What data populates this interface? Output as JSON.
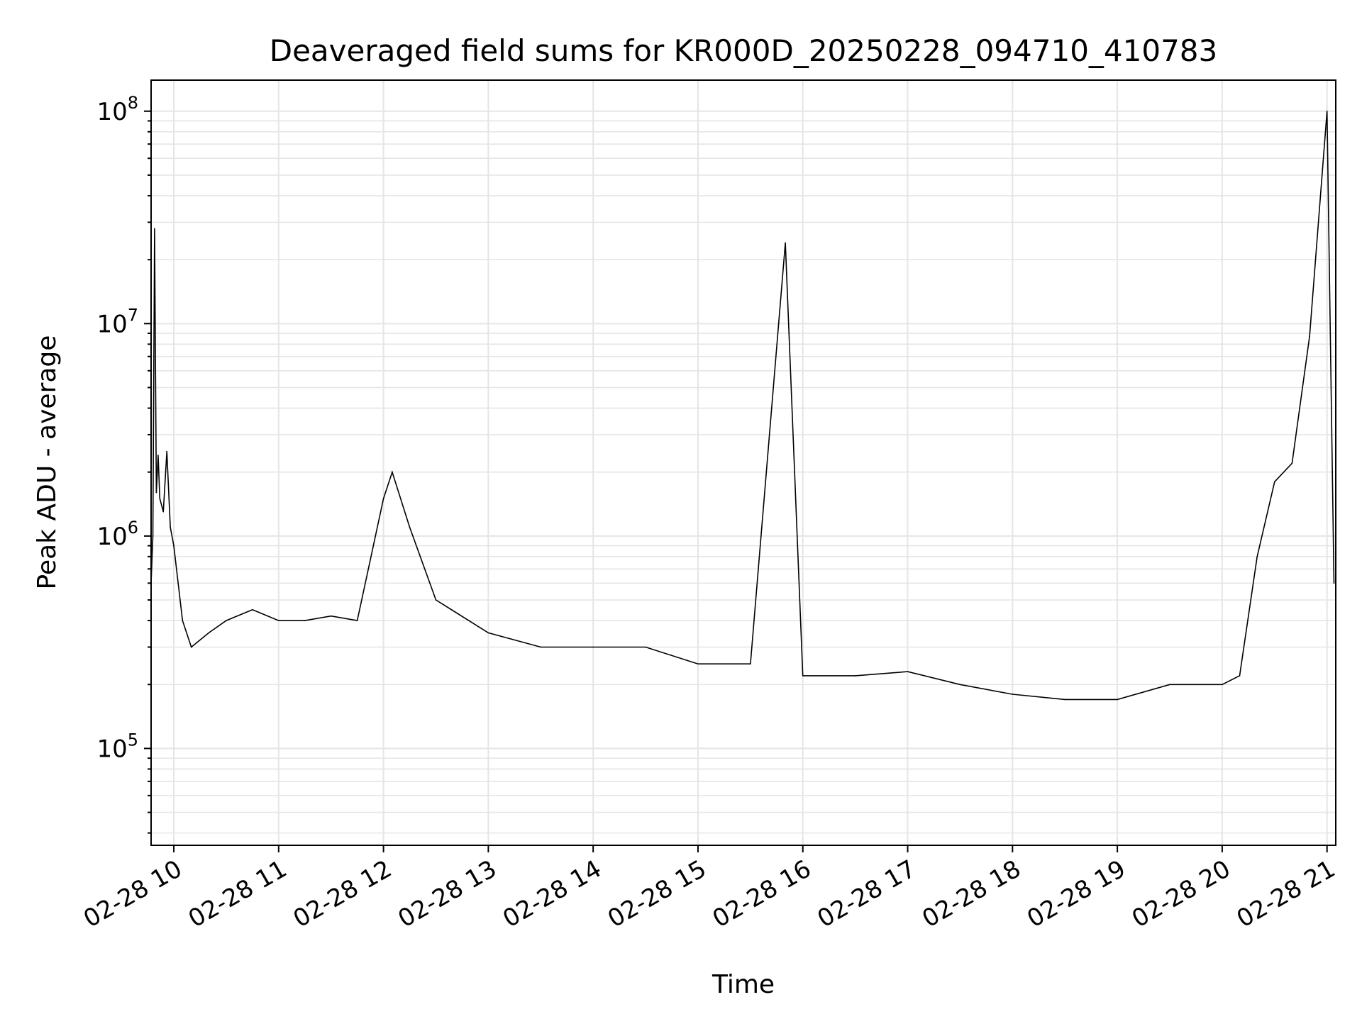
{
  "chart_data": {
    "type": "line",
    "title": "Deaveraged field sums for KR000D_20250228_094710_410783",
    "xlabel": "Time",
    "ylabel": "Peak ADU - average",
    "yscale": "log",
    "xlim": [
      "02-28 09:47",
      "02-28 21:05"
    ],
    "ylim": [
      35000,
      140000000
    ],
    "grid": true,
    "line_color": "#000000",
    "grid_color": "#e5e5e5",
    "x_ticks": [
      "02-28 10",
      "02-28 11",
      "02-28 12",
      "02-28 13",
      "02-28 14",
      "02-28 15",
      "02-28 16",
      "02-28 17",
      "02-28 18",
      "02-28 19",
      "02-28 20",
      "02-28 21"
    ],
    "y_ticks": [
      {
        "base": "10",
        "exp": "5",
        "value": 100000
      },
      {
        "base": "10",
        "exp": "6",
        "value": 1000000
      },
      {
        "base": "10",
        "exp": "7",
        "value": 10000000
      },
      {
        "base": "10",
        "exp": "8",
        "value": 100000000
      }
    ],
    "series": [
      {
        "x": [
          "02-28 09:47",
          "02-28 09:48",
          "02-28 09:49",
          "02-28 09:50",
          "02-28 09:51",
          "02-28 09:52",
          "02-28 09:54",
          "02-28 09:56",
          "02-28 09:58",
          "02-28 10:00",
          "02-28 10:05",
          "02-28 10:10",
          "02-28 10:20",
          "02-28 10:30",
          "02-28 10:45",
          "02-28 11:00",
          "02-28 11:15",
          "02-28 11:30",
          "02-28 11:45",
          "02-28 12:00",
          "02-28 12:05",
          "02-28 12:15",
          "02-28 12:30",
          "02-28 13:00",
          "02-28 13:30",
          "02-28 14:00",
          "02-28 14:30",
          "02-28 15:00",
          "02-28 15:30",
          "02-28 15:50",
          "02-28 16:00",
          "02-28 16:30",
          "02-28 17:00",
          "02-28 17:30",
          "02-28 18:00",
          "02-28 18:30",
          "02-28 19:00",
          "02-28 19:30",
          "02-28 20:00",
          "02-28 20:10",
          "02-28 20:20",
          "02-28 20:30",
          "02-28 20:40",
          "02-28 20:50",
          "02-28 21:00",
          "02-28 21:04"
        ],
        "values": [
          600000,
          1000000,
          28000000,
          1600000,
          2400000,
          1500000,
          1300000,
          2500000,
          1100000,
          900000,
          400000,
          300000,
          350000,
          400000,
          450000,
          400000,
          400000,
          420000,
          400000,
          1500000,
          2000000,
          1100000,
          500000,
          350000,
          300000,
          300000,
          300000,
          250000,
          250000,
          24000000,
          220000,
          220000,
          230000,
          200000,
          180000,
          170000,
          170000,
          200000,
          200000,
          220000,
          800000,
          1800000,
          2200000,
          8700000,
          100000000,
          600000
        ]
      }
    ],
    "annotations": []
  }
}
